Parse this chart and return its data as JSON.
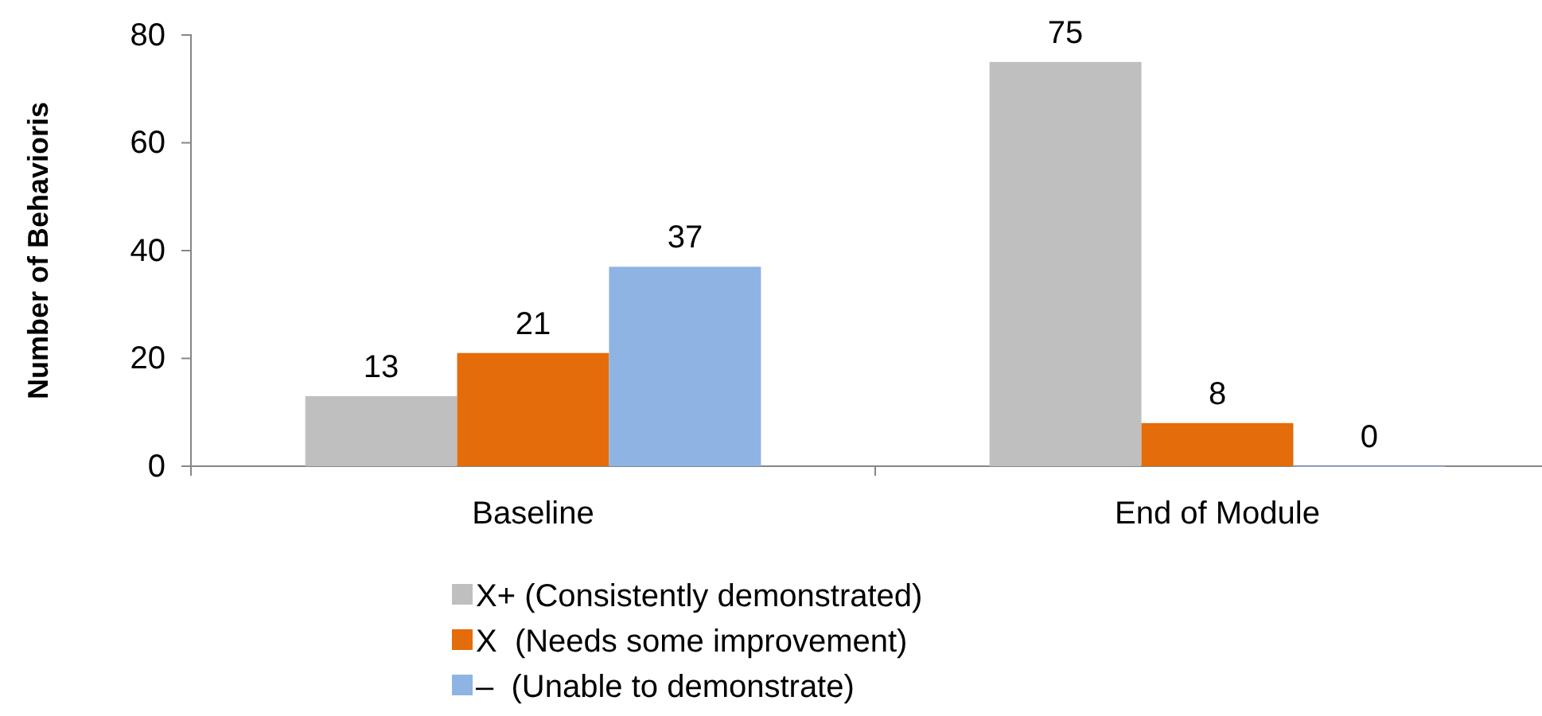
{
  "chart_data": {
    "type": "bar",
    "ylabel": "Number of Behavioris",
    "categories": [
      "Baseline",
      "End of Module"
    ],
    "series": [
      {
        "name": "X+ (Consistently demonstrated)",
        "color": "#bfbfbf",
        "values": [
          13,
          75
        ]
      },
      {
        "name": "X  (Needs some improvement)",
        "color": "#e46c0a",
        "values": [
          21,
          8
        ]
      },
      {
        "name": "–  (Unable to demonstrate)",
        "color": "#8eb4e3",
        "values": [
          37,
          0
        ]
      }
    ],
    "ylim": [
      0,
      80
    ],
    "yticks": [
      0,
      20,
      40,
      60,
      80
    ],
    "grid": false,
    "data_labels": true,
    "legend": "bottom"
  }
}
